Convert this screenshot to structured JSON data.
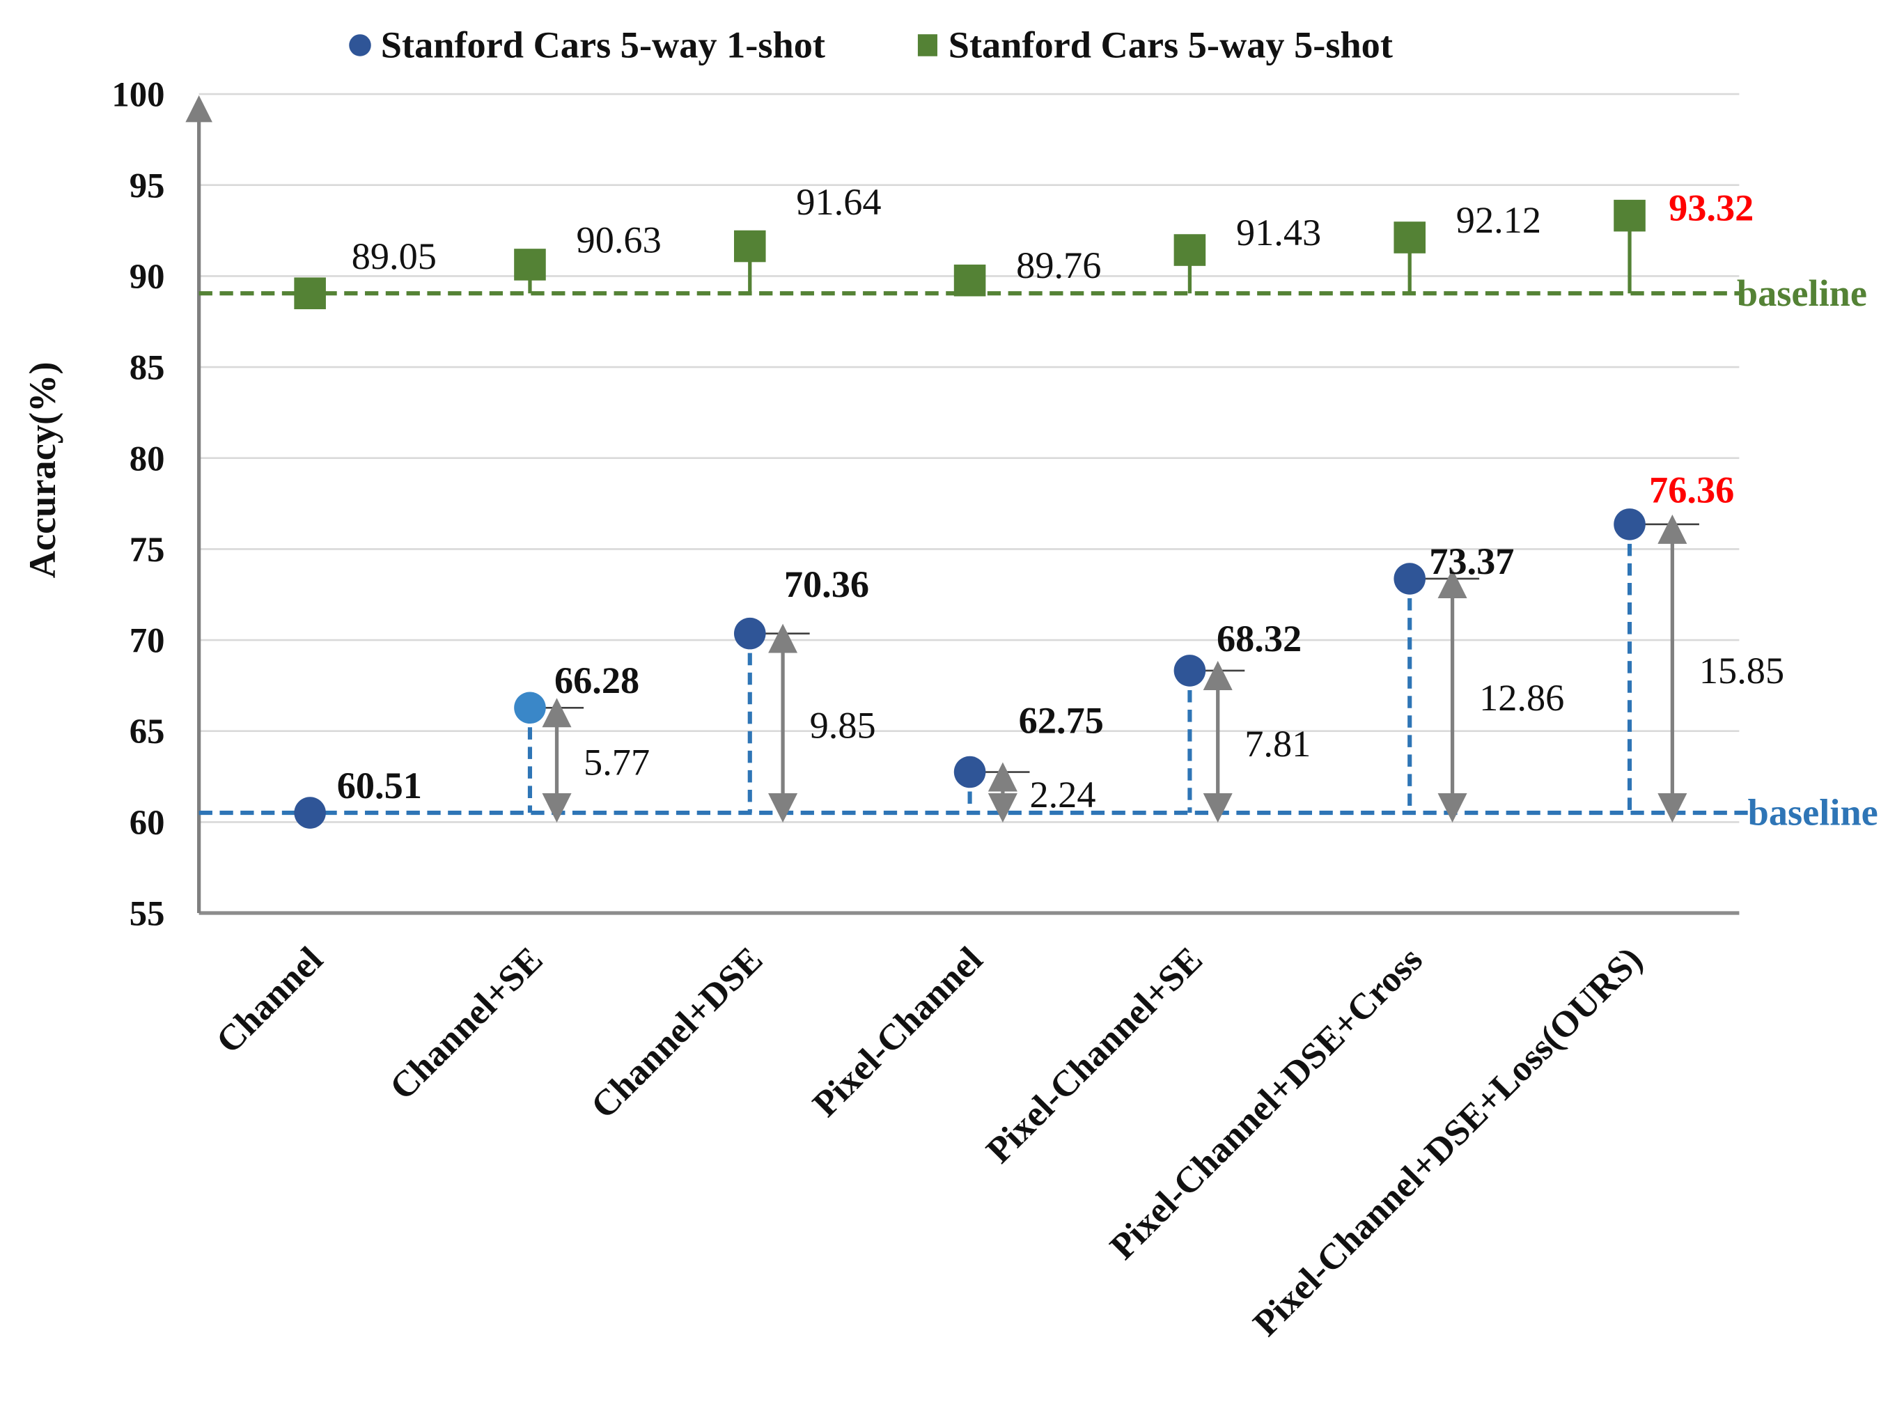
{
  "chart_data": {
    "type": "scatter",
    "title": "",
    "xlabel": "",
    "ylabel": "Accuracy(%)",
    "ylim": [
      55,
      100
    ],
    "yticks": [
      55,
      60,
      65,
      70,
      75,
      80,
      85,
      90,
      95,
      100
    ],
    "grid": true,
    "legend_placement": "top",
    "categories": [
      "Channel",
      "Channel+SE",
      "Channel+DSE",
      "Pixel-Channel",
      "Pixel-Channel+SE",
      "Pixel-Channel+DSE+Cross",
      "Pixel-Channel+DSE+Loss(OURS)"
    ],
    "series": [
      {
        "name": "Stanford Cars 5-way 1-shot",
        "marker": "circle",
        "color": "#2F5597",
        "values": [
          60.51,
          66.28,
          70.36,
          62.75,
          68.32,
          73.37,
          76.36
        ],
        "labels": [
          "60.51",
          "66.28",
          "70.36",
          "62.75",
          "68.32",
          "73.37",
          "76.36"
        ],
        "improvements": [
          null,
          5.77,
          9.85,
          2.24,
          7.81,
          12.86,
          15.85
        ],
        "improvement_labels": [
          "",
          "5.77",
          "9.85",
          "2.24",
          "7.81",
          "12.86",
          "15.85"
        ],
        "baseline": 60.51,
        "baseline_label": "baseline",
        "baseline_color": "#2E75B6"
      },
      {
        "name": "Stanford Cars 5-way 5-shot",
        "marker": "square",
        "color": "#548235",
        "values": [
          89.05,
          90.63,
          91.64,
          89.76,
          91.43,
          92.12,
          93.32
        ],
        "labels": [
          "89.05",
          "90.63",
          "91.64",
          "89.76",
          "91.43",
          "92.12",
          "93.32"
        ],
        "baseline": 89.05,
        "baseline_label": "baseline",
        "baseline_color": "#548235"
      }
    ],
    "highlight_color": "#FF0000",
    "highlight_index": 6
  }
}
